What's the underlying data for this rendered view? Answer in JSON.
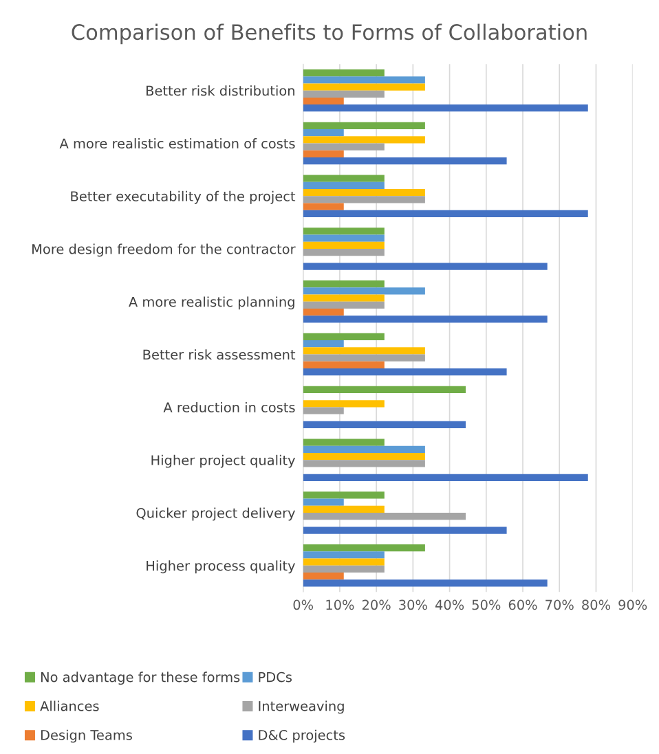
{
  "chart_data": {
    "type": "bar",
    "orientation": "horizontal",
    "title": "Comparison of Benefits to Forms of Collaboration",
    "categories": [
      "Better risk distribution",
      "A more realistic estimation of costs",
      "Better executability of the project",
      "More design freedom for the contractor",
      "A more realistic planning",
      "Better risk assessment",
      "A reduction in costs",
      "Higher project quality",
      "Quicker project delivery",
      "Higher process quality"
    ],
    "series": [
      {
        "name": "No advantage for these forms",
        "color": "#70ad47",
        "values": [
          22.2,
          33.3,
          22.2,
          22.2,
          22.2,
          22.2,
          44.4,
          22.2,
          22.2,
          33.3
        ]
      },
      {
        "name": "PDCs",
        "color": "#5b9bd5",
        "values": [
          33.3,
          11.1,
          22.2,
          22.2,
          33.3,
          11.1,
          0,
          33.3,
          11.1,
          22.2
        ]
      },
      {
        "name": "Alliances",
        "color": "#ffc000",
        "values": [
          33.3,
          33.3,
          33.3,
          22.2,
          22.2,
          33.3,
          22.2,
          33.3,
          22.2,
          22.2
        ]
      },
      {
        "name": "Interweaving",
        "color": "#a5a5a5",
        "values": [
          22.2,
          22.2,
          33.3,
          22.2,
          22.2,
          33.3,
          11.1,
          33.3,
          44.4,
          22.2
        ]
      },
      {
        "name": "Design Teams",
        "color": "#ed7d31",
        "values": [
          11.1,
          11.1,
          11.1,
          0,
          11.1,
          22.2,
          0,
          0,
          0,
          11.1
        ]
      },
      {
        "name": "D&C projects",
        "color": "#4472c4",
        "values": [
          77.8,
          55.6,
          77.8,
          66.7,
          66.7,
          55.6,
          44.4,
          77.8,
          55.6,
          66.7
        ]
      }
    ],
    "xlim": [
      0,
      90
    ],
    "xticks": [
      {
        "value": 0,
        "label": "0%"
      },
      {
        "value": 10,
        "label": "10%"
      },
      {
        "value": 20,
        "label": "20%"
      },
      {
        "value": 30,
        "label": "30%"
      },
      {
        "value": 40,
        "label": "40%"
      },
      {
        "value": 50,
        "label": "50%"
      },
      {
        "value": 60,
        "label": "60%"
      },
      {
        "value": 70,
        "label": "70%"
      },
      {
        "value": 80,
        "label": "80%"
      },
      {
        "value": 90,
        "label": "90%"
      }
    ],
    "grid": "x",
    "legend": "bottom"
  }
}
